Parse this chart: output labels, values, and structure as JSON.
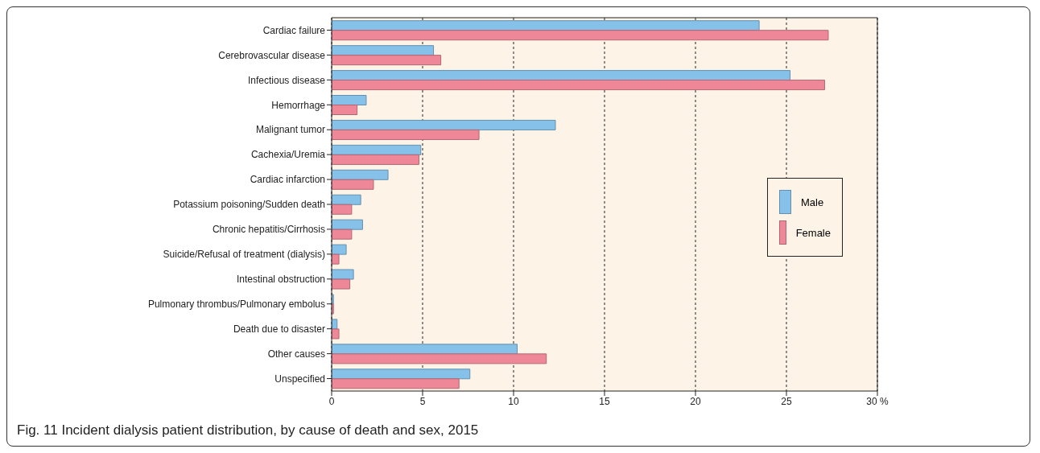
{
  "chart_data": {
    "type": "bar",
    "orientation": "horizontal",
    "title": "Fig. 11 Incident dialysis patient distribution, by cause of death and sex, 2015",
    "categories": [
      "Cardiac failure",
      "Cerebrovascular disease",
      "Infectious disease",
      "Hemorrhage",
      "Malignant tumor",
      "Cachexia/Uremia",
      "Cardiac infarction",
      "Potassium poisoning/Sudden death",
      "Chronic hepatitis/Cirrhosis",
      "Suicide/Refusal of treatment (dialysis)",
      "Intestinal obstruction",
      "Pulmonary thrombus/Pulmonary embolus",
      "Death due to disaster",
      "Other causes",
      "Unspecified"
    ],
    "series": [
      {
        "name": "Male",
        "color": "#85c1e9",
        "values": [
          23.5,
          5.6,
          25.2,
          1.9,
          12.3,
          4.9,
          3.1,
          1.6,
          1.7,
          0.8,
          1.2,
          0.1,
          0.3,
          10.2,
          7.6
        ]
      },
      {
        "name": "Female",
        "color": "#ee8898",
        "values": [
          27.3,
          6.0,
          27.1,
          1.4,
          8.1,
          4.8,
          2.3,
          1.1,
          1.1,
          0.4,
          1.0,
          0.1,
          0.4,
          11.8,
          7.0
        ]
      }
    ],
    "xlim": [
      0,
      30
    ],
    "xticks": [
      0,
      5,
      10,
      15,
      20,
      25,
      {
        "value": 30,
        "label": "30 %"
      }
    ],
    "grid": "x",
    "legend": "right"
  }
}
